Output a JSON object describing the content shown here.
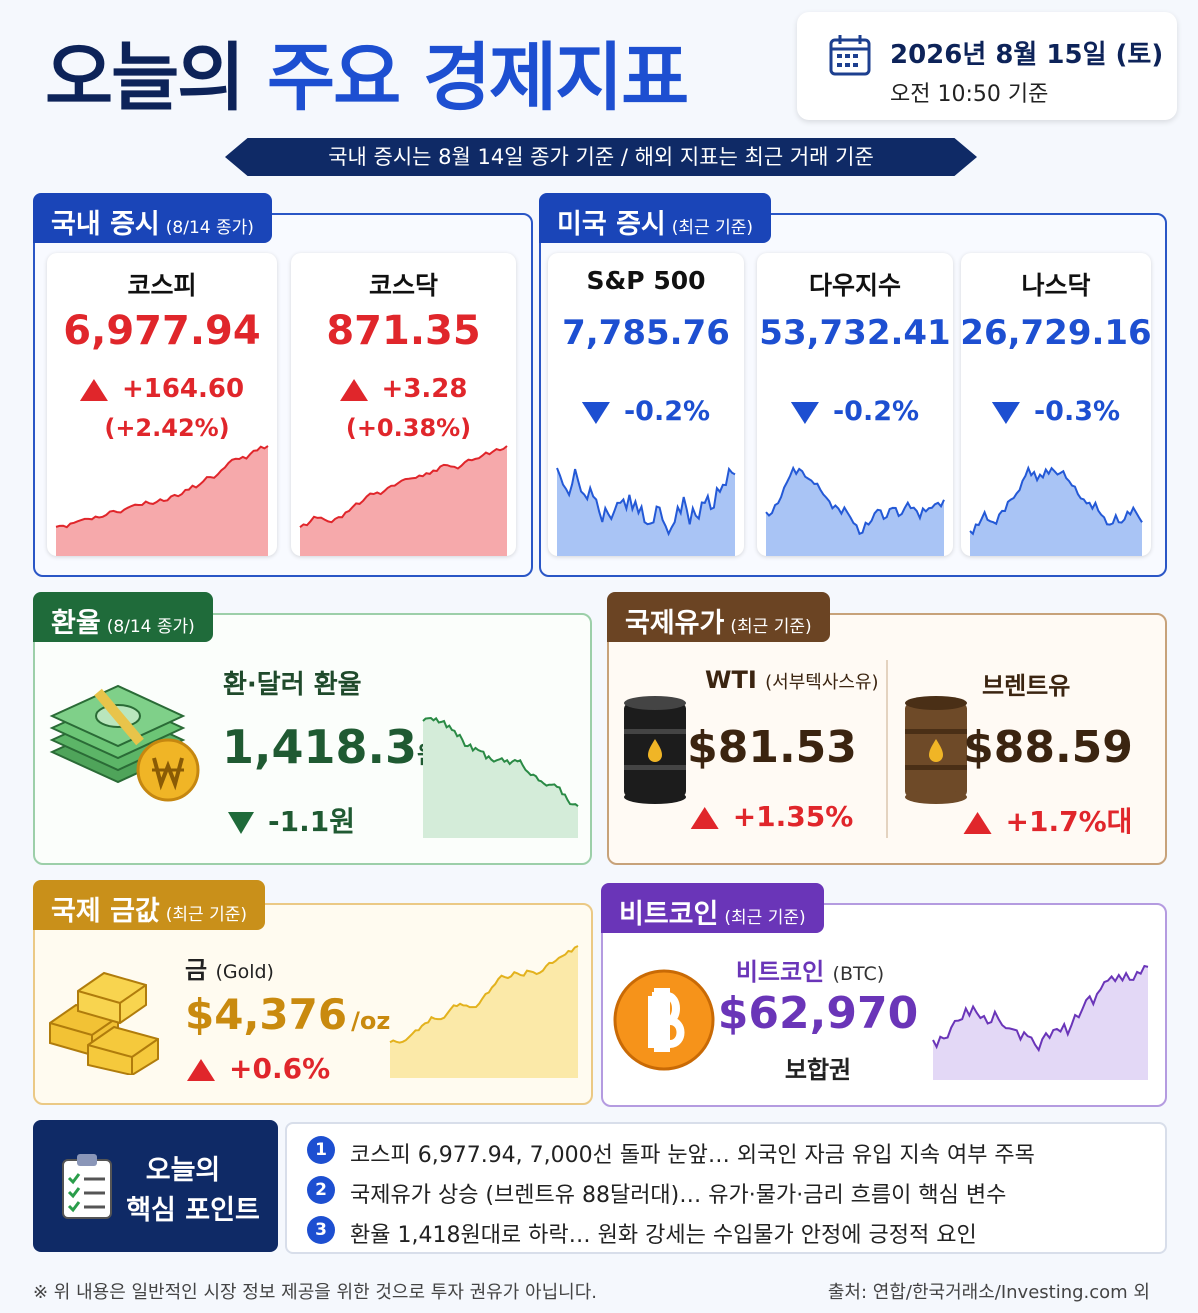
{
  "header": {
    "title_part1": "오늘의",
    "title_part2": "주요 경제지표",
    "date": "2026년 8월 15일 (토)",
    "time": "오전 10:50 기준"
  },
  "banner": "국내 증시는 8월 14일 종가 기준 / 해외 지표는 최근 거래 기준",
  "domestic": {
    "title": "국내 증시",
    "note": "(8/14 종가)",
    "items": [
      {
        "name": "코스피",
        "value": "6,977.94",
        "change": "+164.60",
        "pct": "(+2.42%)"
      },
      {
        "name": "코스닥",
        "value": "871.35",
        "change": "+3.28",
        "pct": "(+0.38%)"
      }
    ]
  },
  "us": {
    "title": "미국 증시",
    "note": "(최근 기준)",
    "items": [
      {
        "name": "S&P 500",
        "value": "7,785.76",
        "change": "-0.2%"
      },
      {
        "name": "다우지수",
        "value": "53,732.41",
        "change": "-0.2%"
      },
      {
        "name": "나스닥",
        "value": "26,729.16",
        "change": "-0.3%"
      }
    ]
  },
  "fx": {
    "title": "환율",
    "note": "(8/14 종가)",
    "label": "환·달러 환율",
    "value": "1,418.3",
    "unit": "원",
    "change": "-1.1원"
  },
  "oil": {
    "title": "국제유가",
    "note": "(최근 기준)",
    "items": [
      {
        "name": "WTI",
        "sub": "(서부텍사스유)",
        "value": "$81.53",
        "change": "+1.35%"
      },
      {
        "name": "브렌트유",
        "value": "$88.59",
        "change": "+1.7%대"
      }
    ]
  },
  "gold": {
    "title": "국제 금값",
    "note": "(최근 기준)",
    "name": "금",
    "sub": "(Gold)",
    "value": "$4,376",
    "unit": "/oz",
    "change": "+0.6%"
  },
  "btc": {
    "title": "비트코인",
    "note": "(최근 기준)",
    "name": "비트코인",
    "sub": "(BTC)",
    "value": "$62,970",
    "status": "보합권"
  },
  "points": {
    "title_line1": "오늘의",
    "title_line2": "핵심 포인트",
    "items": [
      {
        "num": "1",
        "text": "코스피 6,977.94, 7,000선 돌파 눈앞… 외국인 자금 유입 지속 여부 주목"
      },
      {
        "num": "2",
        "text": "국제유가 상승 (브렌트유 88달러대)… 유가·물가·금리 흐름이 핵심 변수"
      },
      {
        "num": "3",
        "text": "환율 1,418원대로 하락… 원화 강세는 수입물가 안정에 긍정적 요인"
      }
    ]
  },
  "footer": {
    "disclaimer": "※ 위 내용은 일반적인 시장 정보 제공을 위한 것으로 투자 권유가 아닙니다.",
    "source": "출처: 연합/한국거래소/Investing.com 외"
  }
}
